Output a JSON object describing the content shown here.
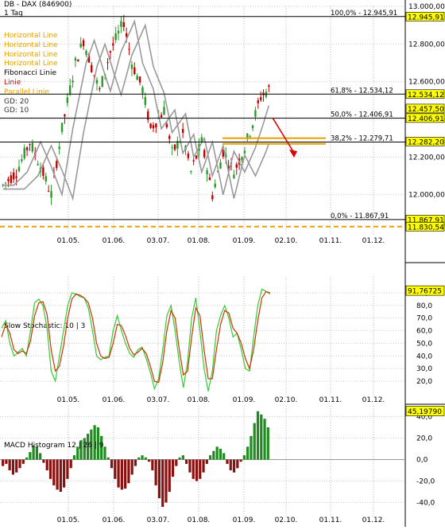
{
  "header": {
    "title": "DB - DAX (846900)",
    "timeframe": "1 Tag"
  },
  "legend": [
    {
      "label": "Horizontal Line",
      "color": "#e8a000"
    },
    {
      "label": "Horizontal Line",
      "color": "#e8a000"
    },
    {
      "label": "Horizontal Line",
      "color": "#e8a000"
    },
    {
      "label": "Horizontal Line",
      "color": "#e8a000"
    },
    {
      "label": "Fibonacci Linie",
      "color": "#000000"
    },
    {
      "label": "Linie",
      "color": "#cc0000"
    },
    {
      "label": "Parallel Linie",
      "color": "#e8a000"
    },
    {
      "label": "GD: 20",
      "color": "#333333"
    },
    {
      "label": "GD: 10",
      "color": "#333333"
    }
  ],
  "colors": {
    "up": "#2a9a2a",
    "down": "#c00000",
    "level": "#e8a000",
    "gd": "#999999",
    "fib": "#000000"
  },
  "chart_data": [
    {
      "type": "candlestick",
      "ylim": [
        11800,
        13000
      ],
      "y_ticks": [
        "12.000,00",
        "12.200,00",
        "12.400,00",
        "12.600,00",
        "12.800,00",
        "13.000,00"
      ],
      "y_tick_values": [
        12000,
        12200,
        12400,
        12600,
        12800,
        13000
      ],
      "x_labels": [
        "01.05.",
        "01.06.",
        "03.07.",
        "01.08.",
        "01.09.",
        "02.10.",
        "01.11.",
        "01.12."
      ],
      "fib_levels": [
        {
          "label": "100,0% - 12.945,91",
          "value": 12945.91
        },
        {
          "label": "61,8% - 12.534,12",
          "value": 12534.12
        },
        {
          "label": "50,0% - 12.406,91",
          "value": 12406.91
        },
        {
          "label": "38,2% - 12.279,71",
          "value": 12279.71
        },
        {
          "label": "0,0% - 11.867,91",
          "value": 11867.91
        }
      ],
      "price_tags": [
        {
          "label": "12.945,91",
          "value": 12945.91
        },
        {
          "label": "12.534,12",
          "value": 12534.12
        },
        {
          "label": "12.457,50",
          "value": 12457.5
        },
        {
          "label": "12.406,91",
          "value": 12406.91
        },
        {
          "label": "12.282,20",
          "value": 12282.2
        },
        {
          "label": "11.867,91",
          "value": 11867.91
        },
        {
          "label": "11.830,547",
          "value": 11830.547
        }
      ],
      "horizontal_lines": [
        12300,
        12270
      ],
      "dashed_line": 11830.547
    },
    {
      "type": "line",
      "title": "Slow Stochastic: 10 | 3",
      "ylim": [
        10,
        95
      ],
      "y_ticks": [
        "20,0",
        "30,0",
        "40,0",
        "50,0",
        "60,0",
        "70,0",
        "80,0",
        "90,0"
      ],
      "y_tick_values": [
        20,
        30,
        40,
        50,
        60,
        70,
        80,
        90
      ],
      "value_tag": "91,76725",
      "x_labels": [
        "01.05.",
        "01.06.",
        "03.07.",
        "01.08.",
        "01.09.",
        "02.10.",
        "01.11.",
        "01.12."
      ],
      "series": [
        {
          "values": [
            62,
            68,
            50,
            40,
            43,
            46,
            40,
            60,
            82,
            85,
            80,
            62,
            28,
            20,
            40,
            60,
            80,
            90,
            89,
            87,
            86,
            78,
            60,
            40,
            37,
            39,
            40,
            60,
            72,
            60,
            50,
            42,
            39,
            45,
            47,
            38,
            27,
            14,
            22,
            45,
            72,
            80,
            60,
            35,
            15,
            35,
            70,
            86,
            60,
            30,
            12,
            28,
            60,
            72,
            80,
            70,
            55,
            58,
            45,
            30,
            28,
            55,
            80,
            93,
            91,
            89
          ]
        },
        {
          "values": [
            55,
            65,
            58,
            45,
            42,
            44,
            42,
            52,
            72,
            82,
            83,
            73,
            45,
            28,
            32,
            48,
            70,
            85,
            89,
            88,
            86,
            82,
            70,
            50,
            40,
            38,
            39,
            50,
            65,
            64,
            56,
            46,
            41,
            43,
            46,
            42,
            32,
            20,
            19,
            35,
            60,
            76,
            70,
            45,
            25,
            28,
            55,
            78,
            72,
            45,
            22,
            22,
            45,
            65,
            76,
            74,
            62,
            58,
            50,
            38,
            30,
            45,
            68,
            86,
            91,
            90
          ]
        }
      ]
    },
    {
      "type": "bar",
      "title": "MACD Histogram 12 | 26 | 9",
      "ylim": [
        -50,
        50
      ],
      "y_ticks": [
        "-40,0",
        "-20,0",
        "0,0",
        "20,0",
        "40,0"
      ],
      "y_tick_values": [
        -40,
        -20,
        0,
        20,
        40
      ],
      "value_tag": "45,19790",
      "x_labels": [
        "01.05.",
        "01.06.",
        "03.07.",
        "01.08.",
        "01.09.",
        "02.10.",
        "01.11.",
        "01.12."
      ],
      "values": [
        -6,
        -4,
        -10,
        -14,
        -12,
        -8,
        -4,
        2,
        7,
        13,
        12,
        6,
        -3,
        -10,
        -18,
        -24,
        -28,
        -30,
        -26,
        -18,
        -8,
        4,
        12,
        18,
        20,
        24,
        28,
        32,
        30,
        22,
        12,
        2,
        -8,
        -18,
        -26,
        -28,
        -27,
        -22,
        -14,
        -6,
        2,
        4,
        2,
        -2,
        -10,
        -24,
        -36,
        -44,
        -40,
        -30,
        -16,
        -6,
        2,
        4,
        -4,
        -12,
        -18,
        -20,
        -18,
        -12,
        -4,
        4,
        8,
        12,
        10,
        6,
        -4,
        -10,
        -12,
        -8,
        -2,
        4,
        12,
        22,
        34,
        45,
        42,
        38,
        30
      ]
    }
  ]
}
